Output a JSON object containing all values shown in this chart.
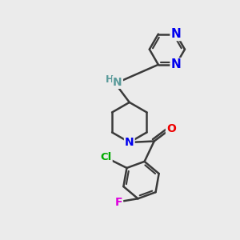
{
  "bg_color": "#ebebeb",
  "bond_color": "#3a3a3a",
  "bond_width": 1.8,
  "N_color": "#0000ee",
  "NH_color": "#5a9a9a",
  "Cl_color": "#00aa00",
  "F_color": "#dd00dd",
  "O_color": "#ee0000",
  "font_size": 10,
  "xlim": [
    0,
    10
  ],
  "ylim": [
    0,
    10
  ]
}
